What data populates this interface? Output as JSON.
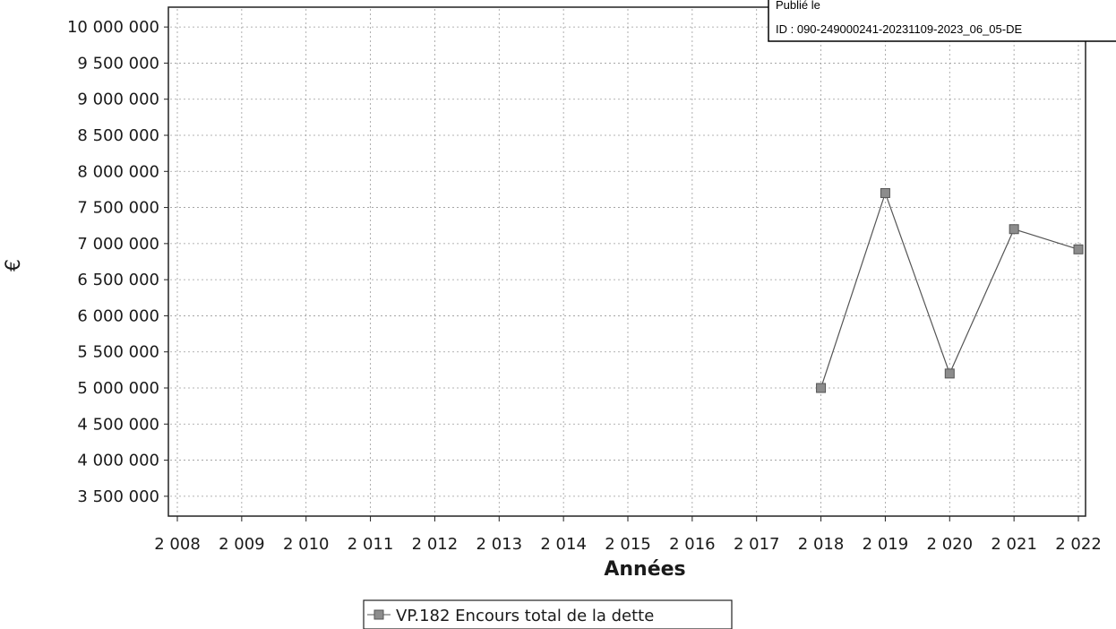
{
  "stamp": {
    "line1": "Publié le",
    "line2": "ID : 090-249000241-20231109-2023_06_05-DE"
  },
  "legend": {
    "marker": "-■-",
    "label": "VP.182 Encours total de la dette"
  },
  "colors": {
    "series": "#8c8c8c",
    "line": "#555555",
    "grid": "#9a9a9a",
    "axis": "#222222"
  },
  "chart_data": {
    "type": "line",
    "xlabel": "Années",
    "ylabel": "€",
    "xlim": [
      2008,
      2022
    ],
    "ylim": [
      3250000,
      10250000
    ],
    "x_ticks": [
      2008,
      2009,
      2010,
      2011,
      2012,
      2013,
      2014,
      2015,
      2016,
      2017,
      2018,
      2019,
      2020,
      2021,
      2022
    ],
    "x_tick_labels": [
      "2 008",
      "2 009",
      "2 010",
      "2 011",
      "2 012",
      "2 013",
      "2 014",
      "2 015",
      "2 016",
      "2 017",
      "2 018",
      "2 019",
      "2 020",
      "2 021",
      "2 022"
    ],
    "y_ticks": [
      3500000,
      4000000,
      4500000,
      5000000,
      5500000,
      6000000,
      6500000,
      7000000,
      7500000,
      8000000,
      8500000,
      9000000,
      9500000,
      10000000
    ],
    "y_tick_labels": [
      "3 500 000",
      "4 000 000",
      "4 500 000",
      "5 000 000",
      "5 500 000",
      "6 000 000",
      "6 500 000",
      "7 000 000",
      "7 500 000",
      "8 000 000",
      "8 500 000",
      "9 000 000",
      "9 500 000",
      "10 000 000"
    ],
    "grid": true,
    "legend_position": "bottom-center",
    "series": [
      {
        "name": "VP.182 Encours total de la dette",
        "x": [
          2018,
          2019,
          2020,
          2021,
          2022
        ],
        "values": [
          5000000,
          7700000,
          5200000,
          7200000,
          6920000
        ]
      }
    ]
  }
}
